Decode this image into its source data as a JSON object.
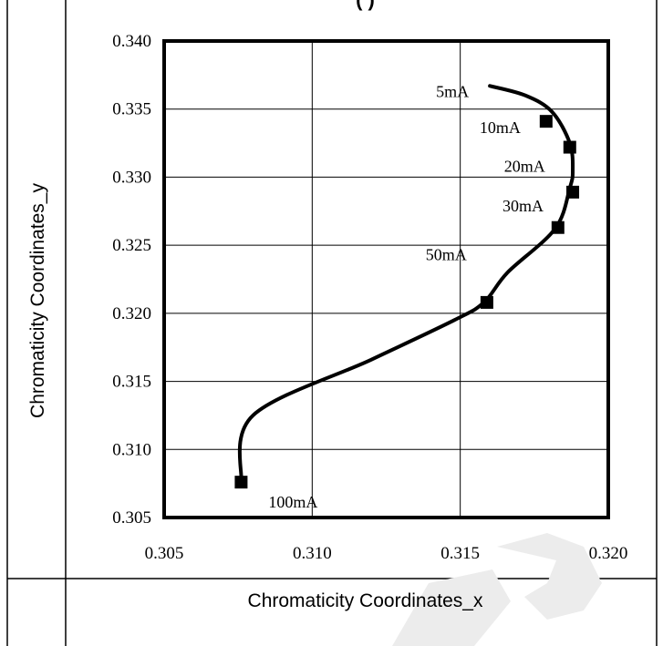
{
  "figure": {
    "top_title_fragment": "(       )",
    "colors": {
      "line": "#000000",
      "grid": "#000000",
      "background": "#ffffff",
      "watermark": "#ececec"
    }
  },
  "chart_data": {
    "type": "line",
    "title": "",
    "xlabel": "Chromaticity Coordinates_x",
    "ylabel": "Chromaticity Coordinates_y",
    "xlim": [
      0.305,
      0.32
    ],
    "ylim": [
      0.305,
      0.34
    ],
    "x_ticks": [
      "0.305",
      "0.310",
      "0.315",
      "0.320"
    ],
    "y_ticks": [
      "0.305",
      "0.310",
      "0.315",
      "0.320",
      "0.325",
      "0.330",
      "0.335",
      "0.340"
    ],
    "grid": true,
    "legend": "none",
    "curve": [
      {
        "x": 0.316,
        "y": 0.3367
      },
      {
        "x": 0.3172,
        "y": 0.336
      },
      {
        "x": 0.3181,
        "y": 0.3348
      },
      {
        "x": 0.3187,
        "y": 0.3325
      },
      {
        "x": 0.3188,
        "y": 0.3305
      },
      {
        "x": 0.3187,
        "y": 0.3292
      },
      {
        "x": 0.3182,
        "y": 0.3262
      },
      {
        "x": 0.3166,
        "y": 0.323
      },
      {
        "x": 0.3158,
        "y": 0.3208
      },
      {
        "x": 0.3148,
        "y": 0.3195
      },
      {
        "x": 0.312,
        "y": 0.3166
      },
      {
        "x": 0.308,
        "y": 0.3125
      },
      {
        "x": 0.3076,
        "y": 0.3076
      }
    ],
    "points": [
      {
        "label": "5mA",
        "x": 0.316,
        "y": 0.3367
      },
      {
        "label": "10mA",
        "x": 0.3179,
        "y": 0.3341
      },
      {
        "label": "20mA",
        "x": 0.3187,
        "y": 0.3322
      },
      {
        "label": "30mA",
        "x": 0.3188,
        "y": 0.3289
      },
      {
        "label": "50mA",
        "x": 0.3183,
        "y": 0.3263
      },
      {
        "label": "100mA",
        "x": 0.3076,
        "y": 0.3076
      }
    ],
    "point_labels": [
      "5mA",
      "10mA",
      "20mA",
      "30mA",
      "50mA",
      "100mA"
    ],
    "markers": [
      {
        "x": 0.3179,
        "y": 0.3341
      },
      {
        "x": 0.3187,
        "y": 0.3322
      },
      {
        "x": 0.3188,
        "y": 0.3289
      },
      {
        "x": 0.3183,
        "y": 0.3263
      },
      {
        "x": 0.3159,
        "y": 0.3208
      },
      {
        "x": 0.3076,
        "y": 0.3076
      }
    ]
  }
}
